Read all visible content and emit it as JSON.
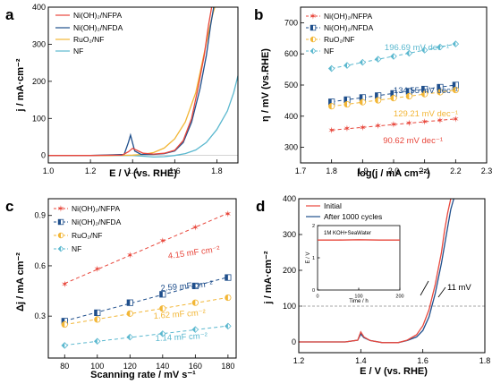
{
  "chart_data": [
    {
      "panel": "a",
      "type": "line",
      "xlabel": "E / V (vs. RHE)",
      "ylabel": "j / mA·cm⁻²",
      "xlim": [
        1.0,
        1.9
      ],
      "ylim": [
        -20,
        400
      ],
      "xticks": [
        "1.0",
        "1.2",
        "1.4",
        "1.6",
        "1.8"
      ],
      "yticks": [
        "0",
        "100",
        "200",
        "300",
        "400"
      ],
      "legend": "top-left",
      "series": [
        {
          "name": "Ni(OH)₂/NFPA",
          "color": "#e8473c",
          "x": [
            1.0,
            1.2,
            1.35,
            1.38,
            1.4,
            1.42,
            1.45,
            1.5,
            1.55,
            1.6,
            1.64,
            1.68,
            1.71,
            1.74,
            1.76,
            1.775
          ],
          "y": [
            0,
            0,
            1,
            10,
            19,
            14,
            6,
            4,
            6,
            14,
            40,
            100,
            180,
            270,
            350,
            400
          ]
        },
        {
          "name": "Ni(OH)₂/NFDA",
          "color": "#1f4f8c",
          "x": [
            1.0,
            1.2,
            1.36,
            1.38,
            1.39,
            1.41,
            1.44,
            1.5,
            1.55,
            1.6,
            1.64,
            1.68,
            1.72,
            1.75,
            1.77,
            1.785
          ],
          "y": [
            0,
            0,
            3,
            35,
            55,
            12,
            3,
            3,
            5,
            12,
            35,
            90,
            180,
            270,
            350,
            400
          ]
        },
        {
          "name": "RuO₂/NF",
          "color": "#f2b636",
          "x": [
            1.0,
            1.3,
            1.4,
            1.45,
            1.5,
            1.55,
            1.6,
            1.65,
            1.7,
            1.73,
            1.76,
            1.78,
            1.79
          ],
          "y": [
            0,
            0,
            1,
            3,
            8,
            20,
            45,
            90,
            170,
            250,
            330,
            380,
            400
          ]
        },
        {
          "name": "NF",
          "color": "#5bb8cf",
          "x": [
            1.0,
            1.3,
            1.4,
            1.45,
            1.5,
            1.55,
            1.6,
            1.65,
            1.7,
            1.75,
            1.8,
            1.85,
            1.88,
            1.9
          ],
          "y": [
            0,
            0,
            0,
            -2,
            -4,
            -3,
            0,
            5,
            15,
            35,
            70,
            120,
            170,
            215
          ]
        }
      ]
    },
    {
      "panel": "b",
      "type": "scatter",
      "xlabel": "log(j / mA cm⁻²)",
      "ylabel": "η / mV (vs.RHE)",
      "xlim": [
        1.7,
        2.3
      ],
      "ylim": [
        250,
        750
      ],
      "xticks": [
        "1.7",
        "1.8",
        "1.9",
        "2.0",
        "2.1",
        "2.2",
        "2.3"
      ],
      "yticks": [
        "300",
        "400",
        "500",
        "600",
        "700"
      ],
      "legend": "top-left",
      "series": [
        {
          "name": "Ni(OH)₂/NFPA",
          "color": "#e8473c",
          "marker": "star",
          "x": [
            1.8,
            1.85,
            1.9,
            1.95,
            2.0,
            2.05,
            2.1,
            2.15,
            2.2
          ],
          "y": [
            355,
            360,
            364,
            369,
            373,
            378,
            382,
            387,
            391
          ],
          "annotation": "90.62 mV dec⁻¹"
        },
        {
          "name": "Ni(OH)₂/NFDA",
          "color": "#1f4f8c",
          "marker": "half-square",
          "x": [
            1.8,
            1.85,
            1.9,
            1.95,
            2.0,
            2.05,
            2.1,
            2.15,
            2.2
          ],
          "y": [
            446,
            453,
            460,
            466,
            473,
            480,
            487,
            493,
            500
          ],
          "annotation": "134.55 mV dec⁻¹"
        },
        {
          "name": "RuO₂/NF",
          "color": "#f2b636",
          "marker": "half-circle",
          "x": [
            1.8,
            1.85,
            1.9,
            1.95,
            2.0,
            2.05,
            2.1,
            2.15,
            2.2
          ],
          "y": [
            432,
            438,
            445,
            451,
            458,
            464,
            471,
            477,
            484
          ],
          "annotation": "129.21 mV dec⁻¹"
        },
        {
          "name": "NF",
          "color": "#5bb8cf",
          "marker": "half-diamond",
          "x": [
            1.8,
            1.85,
            1.9,
            1.95,
            2.0,
            2.05,
            2.1,
            2.15,
            2.2
          ],
          "y": [
            553,
            563,
            573,
            583,
            592,
            602,
            612,
            622,
            632
          ],
          "annotation": "196.69 mV dec⁻¹"
        }
      ]
    },
    {
      "panel": "c",
      "type": "scatter",
      "xlabel": "Scanning rate / mV s⁻¹",
      "ylabel": "Δj / mA cm⁻²",
      "xlim": [
        70,
        185
      ],
      "ylim": [
        0.05,
        1.0
      ],
      "xticks": [
        "80",
        "100",
        "120",
        "140",
        "160",
        "180"
      ],
      "yticks": [
        "0.3",
        "0.6",
        "0.9"
      ],
      "legend": "top-left",
      "series": [
        {
          "name": "Ni(OH)₂/NFPA",
          "color": "#e8473c",
          "marker": "star",
          "x": [
            80,
            100,
            120,
            140,
            160,
            180
          ],
          "y": [
            0.49,
            0.58,
            0.665,
            0.75,
            0.83,
            0.91
          ],
          "annotation": "4.15 mF cm⁻²"
        },
        {
          "name": "Ni(OH)₂/NFDA",
          "color": "#1f4f8c",
          "marker": "half-square",
          "x": [
            80,
            100,
            120,
            140,
            160,
            180
          ],
          "y": [
            0.27,
            0.32,
            0.38,
            0.43,
            0.48,
            0.53
          ],
          "annotation": "2.59 mF cm⁻²"
        },
        {
          "name": "RuO₂/NF",
          "color": "#f2b636",
          "marker": "half-circle",
          "x": [
            80,
            100,
            120,
            140,
            160,
            180
          ],
          "y": [
            0.25,
            0.28,
            0.315,
            0.345,
            0.38,
            0.41
          ],
          "annotation": "1.62 mF cm⁻²"
        },
        {
          "name": "NF",
          "color": "#5bb8cf",
          "marker": "half-diamond",
          "x": [
            80,
            100,
            120,
            140,
            160,
            180
          ],
          "y": [
            0.125,
            0.15,
            0.175,
            0.195,
            0.22,
            0.24
          ],
          "annotation": "1.14 mF cm⁻²"
        }
      ]
    },
    {
      "panel": "d",
      "type": "line",
      "xlabel": "E / V (vs. RHE)",
      "ylabel": "j / mA·cm⁻²",
      "xlim": [
        1.2,
        1.8
      ],
      "ylim": [
        -30,
        400
      ],
      "xticks": [
        "1.2",
        "1.4",
        "1.6",
        "1.8"
      ],
      "yticks": [
        "0",
        "100",
        "200",
        "300",
        "400"
      ],
      "legend": "top-left",
      "reference_line_y": 100,
      "annotation": "11 mV",
      "series": [
        {
          "name": "Initial",
          "color": "#e8473c",
          "x": [
            1.2,
            1.35,
            1.39,
            1.4,
            1.41,
            1.43,
            1.47,
            1.52,
            1.55,
            1.58,
            1.6,
            1.62,
            1.64,
            1.66,
            1.67,
            1.68,
            1.69
          ],
          "y": [
            0,
            0,
            5,
            28,
            14,
            4,
            -2,
            -2,
            5,
            20,
            45,
            90,
            160,
            250,
            310,
            360,
            400
          ]
        },
        {
          "name": "After 1000 cycles",
          "color": "#1f4f8c",
          "x": [
            1.2,
            1.35,
            1.39,
            1.4,
            1.41,
            1.43,
            1.47,
            1.52,
            1.55,
            1.58,
            1.6,
            1.62,
            1.64,
            1.66,
            1.68,
            1.69,
            1.7
          ],
          "y": [
            0,
            0,
            5,
            22,
            12,
            4,
            -2,
            -2,
            4,
            14,
            32,
            70,
            135,
            220,
            320,
            370,
            400
          ]
        }
      ],
      "inset": {
        "label": "1M KOH+SeaWater",
        "xlabel": "Time / h",
        "ylabel": "E / V",
        "xlim": [
          0,
          200
        ],
        "ylim": [
          0,
          2
        ],
        "xticks": [
          "0",
          "100",
          "200"
        ],
        "yticks": [
          "0",
          "1",
          "2"
        ],
        "series": [
          {
            "color": "#e8473c",
            "x": [
              0,
              50,
              100,
              150,
              200
            ],
            "y": [
              1.55,
              1.55,
              1.56,
              1.55,
              1.55
            ]
          }
        ]
      }
    }
  ]
}
